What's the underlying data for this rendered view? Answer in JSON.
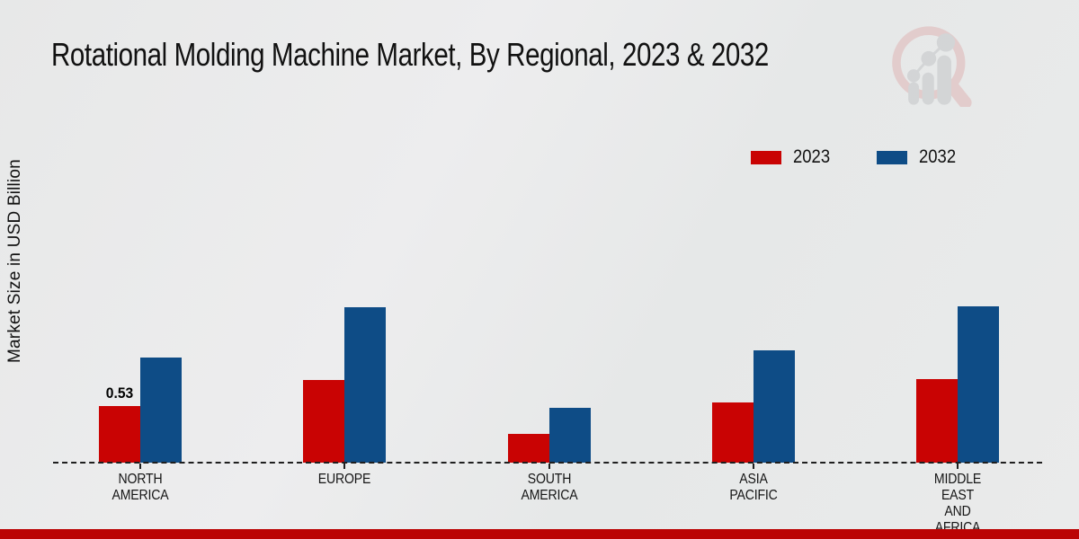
{
  "page": {
    "background_color": "#e9eaea"
  },
  "chart_data": {
    "type": "bar",
    "title": "Rotational Molding Machine Market, By Regional, 2023 & 2032",
    "xlabel": "",
    "ylabel": "Market Size in USD Billion",
    "categories": [
      "NORTH AMERICA",
      "EUROPE",
      "SOUTH AMERICA",
      "ASIA PACIFIC",
      "MIDDLE EAST AND AFRICA"
    ],
    "category_label_lines": [
      [
        "NORTH",
        "AMERICA"
      ],
      [
        "EUROPE"
      ],
      [
        "SOUTH",
        "AMERICA"
      ],
      [
        "ASIA",
        "PACIFIC"
      ],
      [
        "MIDDLE",
        "EAST",
        "AND",
        "AFRICA"
      ]
    ],
    "series": [
      {
        "name": "2023",
        "color": "#c90303",
        "values": [
          0.53,
          0.77,
          0.27,
          0.56,
          0.78
        ]
      },
      {
        "name": "2032",
        "color": "#0e4c86",
        "values": [
          0.98,
          1.45,
          0.51,
          1.05,
          1.46
        ]
      }
    ],
    "bar_labels": [
      {
        "series": "2023",
        "category": "NORTH AMERICA",
        "text": "0.53"
      }
    ],
    "ylim": [
      0,
      1.6
    ],
    "grid": false,
    "y_axis_ticks_visible": false,
    "baseline_style": "dashed",
    "legend_position": "top-right"
  },
  "legend": {
    "items": [
      {
        "label": "2023",
        "color": "#c90303"
      },
      {
        "label": "2032",
        "color": "#0e4c86"
      }
    ]
  },
  "footer": {
    "bar_color": "#bb0404"
  },
  "logo": {
    "name": "market-research-magnifier-logo",
    "ring_color": "#dfb6b6",
    "bars_color": "#c3c5c8"
  }
}
